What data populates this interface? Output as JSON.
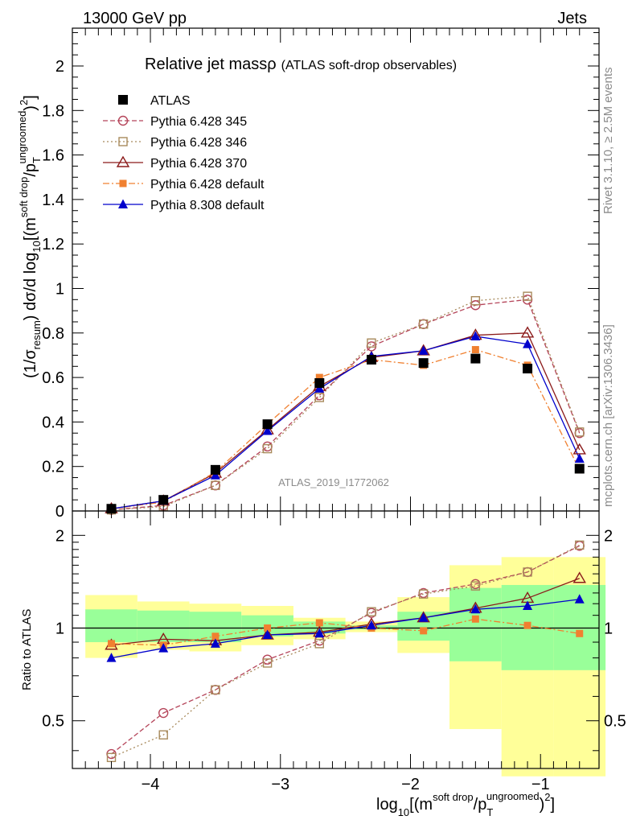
{
  "header": {
    "left": "13000 GeV pp",
    "right": "Jets"
  },
  "title": {
    "main": "Relative jet massρ",
    "sub": "(ATLAS soft-drop observables)"
  },
  "watermark": "ATLAS_2019_I1772062",
  "side_labels": {
    "rivet": "Rivet 3.1.10, ≥ 2.5M events",
    "mcplots": "mcplots.cern.ch [arXiv:1306.3436]"
  },
  "upper_ylabel": {
    "a": "(1/σ",
    "a_sub": "resum",
    "b": ") dσ/d log",
    "b_sub": "10",
    "c": "[(m",
    "c_sup": "soft drop",
    "d": "/p",
    "d_sub": "T",
    "d_sup": "ungroomed",
    "e": ")",
    "e_sup": "2",
    "f": "]"
  },
  "lower_ylabel": "Ratio to ATLAS",
  "xlabel": {
    "a": "log",
    "a_sub": "10",
    "b": "[(m",
    "b_sup": "soft drop",
    "c": "/p",
    "c_sub": "T",
    "c_sup": "ungroomed",
    "d": ")",
    "d_sup": "2",
    "e": "]"
  },
  "chart_data": [
    {
      "type": "scatter",
      "panel": "main",
      "xlim": [
        -4.6,
        -0.55
      ],
      "ylim": [
        0,
        2.17
      ],
      "yticks": [
        "0",
        "0.2",
        "0.4",
        "0.6",
        "0.8",
        "1",
        "1.2",
        "1.4",
        "1.6",
        "1.8",
        "2"
      ],
      "x": [
        -4.3,
        -3.9,
        -3.5,
        -3.1,
        -2.7,
        -2.3,
        -1.9,
        -1.5,
        -1.1,
        -0.7
      ],
      "series": [
        {
          "name": "ATLAS",
          "color": "#000000",
          "marker": "filled-square",
          "values": [
            0.01,
            0.05,
            0.185,
            0.39,
            0.575,
            0.68,
            0.665,
            0.685,
            0.64,
            0.19
          ]
        },
        {
          "name": "Pythia 6.428 345",
          "color": "#b5455a",
          "marker": "open-circle",
          "dash": "dashed",
          "values": [
            0.005,
            0.025,
            0.115,
            0.29,
            0.52,
            0.74,
            0.84,
            0.925,
            0.95,
            0.35
          ]
        },
        {
          "name": "Pythia 6.428 346",
          "color": "#a88a5c",
          "marker": "open-square",
          "dash": "dotted",
          "values": [
            0.005,
            0.02,
            0.115,
            0.28,
            0.51,
            0.755,
            0.84,
            0.945,
            0.965,
            0.355
          ]
        },
        {
          "name": "Pythia 6.428 370",
          "color": "#8b1a1a",
          "marker": "open-triangle",
          "dash": "solid",
          "values": [
            0.01,
            0.045,
            0.17,
            0.365,
            0.56,
            0.69,
            0.72,
            0.79,
            0.8,
            0.275
          ]
        },
        {
          "name": "Pythia 6.428 default",
          "color": "#f08030",
          "marker": "filled-square-small",
          "dash": "dashdot",
          "values": [
            0.01,
            0.04,
            0.175,
            0.39,
            0.6,
            0.68,
            0.655,
            0.725,
            0.655,
            0.185
          ]
        },
        {
          "name": "Pythia 8.308 default",
          "color": "#0000cc",
          "marker": "filled-triangle",
          "dash": "solid",
          "values": [
            0.01,
            0.045,
            0.16,
            0.36,
            0.55,
            0.695,
            0.72,
            0.785,
            0.75,
            0.235
          ]
        }
      ]
    },
    {
      "type": "scatter",
      "panel": "ratio",
      "xlim": [
        -4.6,
        -0.55
      ],
      "ylim": [
        0.35,
        2.4
      ],
      "yscale": "log",
      "yticks": [
        "0.5",
        "1",
        "2"
      ],
      "xticks": [
        "−4",
        "−3",
        "−2",
        "−1"
      ],
      "x": [
        -4.3,
        -3.9,
        -3.5,
        -3.1,
        -2.7,
        -2.3,
        -1.9,
        -1.5,
        -1.1,
        -0.7
      ],
      "bins": [
        [
          -4.5,
          -4.1
        ],
        [
          -4.1,
          -3.7
        ],
        [
          -3.7,
          -3.3
        ],
        [
          -3.3,
          -2.9
        ],
        [
          -2.9,
          -2.5
        ],
        [
          -2.5,
          -2.1
        ],
        [
          -2.1,
          -1.7
        ],
        [
          -1.7,
          -1.3
        ],
        [
          -1.3,
          -0.9
        ],
        [
          -0.9,
          -0.5
        ]
      ],
      "band_stat": [
        [
          0.9,
          1.15
        ],
        [
          0.9,
          1.14
        ],
        [
          0.9,
          1.13
        ],
        [
          0.94,
          1.1
        ],
        [
          0.96,
          1.05
        ],
        [
          0.99,
          1.02
        ],
        [
          0.91,
          1.13
        ],
        [
          0.78,
          1.35
        ],
        [
          0.73,
          1.38
        ],
        [
          0.73,
          1.38
        ]
      ],
      "band_total": [
        [
          0.8,
          1.28
        ],
        [
          0.85,
          1.22
        ],
        [
          0.84,
          1.2
        ],
        [
          0.88,
          1.18
        ],
        [
          0.92,
          1.08
        ],
        [
          0.97,
          1.05
        ],
        [
          0.83,
          1.26
        ],
        [
          0.47,
          1.6
        ],
        [
          0.33,
          1.7
        ],
        [
          0.33,
          1.7
        ]
      ],
      "series": [
        {
          "name": "Pythia 6.428 345",
          "values": [
            0.39,
            0.53,
            0.63,
            0.79,
            0.91,
            1.12,
            1.3,
            1.39,
            1.52,
            1.85
          ]
        },
        {
          "name": "Pythia 6.428 346",
          "values": [
            0.38,
            0.45,
            0.63,
            0.77,
            0.89,
            1.13,
            1.29,
            1.37,
            1.52,
            1.86
          ]
        },
        {
          "name": "Pythia 6.428 370",
          "values": [
            0.88,
            0.92,
            0.91,
            0.95,
            0.97,
            1.03,
            1.08,
            1.16,
            1.25,
            1.45
          ]
        },
        {
          "name": "Pythia 6.428 default",
          "values": [
            0.89,
            0.88,
            0.94,
            1.0,
            1.04,
            1.0,
            0.98,
            1.07,
            1.02,
            0.96
          ]
        },
        {
          "name": "Pythia 8.308 default",
          "values": [
            0.8,
            0.86,
            0.89,
            0.95,
            0.96,
            1.02,
            1.08,
            1.15,
            1.18,
            1.24
          ]
        }
      ]
    }
  ]
}
